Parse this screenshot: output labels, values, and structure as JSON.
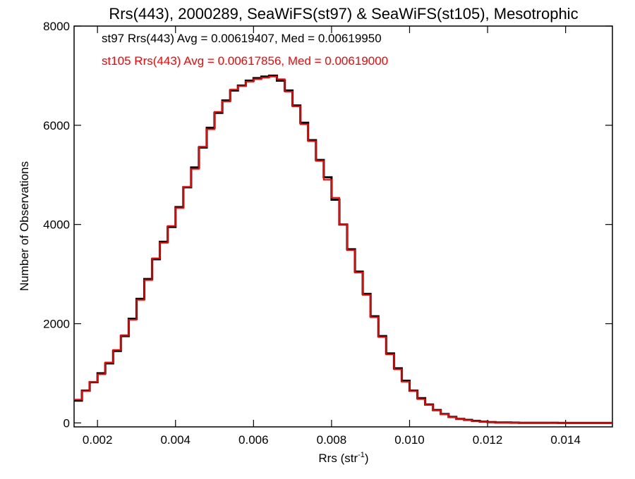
{
  "chart_data": {
    "type": "line",
    "title": "Rrs(443), 2000289, SeaWiFS(st97) & SeaWiFS(st105), Mesotrophic",
    "xlabel_main": "Rrs (str",
    "xlabel_sup": "-1",
    "xlabel_close": ")",
    "ylabel": "Number of Observations",
    "xlim": [
      0.0014,
      0.0152
    ],
    "ylim": [
      -80,
      8000
    ],
    "xticks": [
      "0.002",
      "0.004",
      "0.006",
      "0.008",
      "0.010",
      "0.012",
      "0.014"
    ],
    "xtick_values": [
      0.002,
      0.004,
      0.006,
      0.008,
      0.01,
      0.012,
      0.014
    ],
    "yticks": [
      "0",
      "2000",
      "4000",
      "6000",
      "8000"
    ],
    "ytick_values": [
      0,
      2000,
      4000,
      6000,
      8000
    ],
    "grid": false,
    "legend_placement": "top-left",
    "annotations": [
      {
        "text": "st97 Rrs(443) Avg = 0.00619407, Med = 0.00619950",
        "color": "#000000"
      },
      {
        "text": "st105 Rrs(443) Avg = 0.00617856, Med = 0.00619000",
        "color": "#ff0000"
      }
    ],
    "series": [
      {
        "name": "st97",
        "color": "#000000",
        "x": [
          0.0014,
          0.0016,
          0.0018,
          0.002,
          0.0022,
          0.0024,
          0.0026,
          0.0028,
          0.003,
          0.0032,
          0.0034,
          0.0036,
          0.0038,
          0.004,
          0.0042,
          0.0044,
          0.0046,
          0.0048,
          0.005,
          0.0052,
          0.0054,
          0.0056,
          0.0058,
          0.006,
          0.0062,
          0.0064,
          0.0066,
          0.0068,
          0.007,
          0.0072,
          0.0074,
          0.0076,
          0.0078,
          0.008,
          0.0082,
          0.0084,
          0.0086,
          0.0088,
          0.009,
          0.0092,
          0.0094,
          0.0096,
          0.0098,
          0.01,
          0.0102,
          0.0104,
          0.0106,
          0.0108,
          0.011,
          0.0112,
          0.0114,
          0.0116,
          0.0118,
          0.012,
          0.0122,
          0.0124,
          0.0126,
          0.0128,
          0.013,
          0.0132,
          0.0134,
          0.0136,
          0.0138,
          0.014,
          0.0142,
          0.0144,
          0.0146,
          0.0148,
          0.015,
          0.0152
        ],
        "y": [
          450,
          650,
          820,
          1000,
          1200,
          1450,
          1750,
          2100,
          2500,
          2900,
          3300,
          3650,
          3950,
          4350,
          4750,
          5150,
          5550,
          5950,
          6250,
          6500,
          6700,
          6800,
          6900,
          6950,
          6980,
          7000,
          6900,
          6700,
          6400,
          6050,
          5700,
          5300,
          4950,
          4500,
          4000,
          3500,
          3050,
          2600,
          2150,
          1750,
          1400,
          1100,
          850,
          650,
          500,
          370,
          260,
          180,
          120,
          80,
          60,
          40,
          25,
          15,
          10,
          8,
          5,
          3,
          2,
          2,
          1,
          1,
          0,
          0,
          0,
          0,
          0,
          0,
          0,
          0
        ]
      },
      {
        "name": "st105",
        "color": "#ff0000",
        "x": [
          0.0014,
          0.0016,
          0.0018,
          0.002,
          0.0022,
          0.0024,
          0.0026,
          0.0028,
          0.003,
          0.0032,
          0.0034,
          0.0036,
          0.0038,
          0.004,
          0.0042,
          0.0044,
          0.0046,
          0.0048,
          0.005,
          0.0052,
          0.0054,
          0.0056,
          0.0058,
          0.006,
          0.0062,
          0.0064,
          0.0066,
          0.0068,
          0.007,
          0.0072,
          0.0074,
          0.0076,
          0.0078,
          0.008,
          0.0082,
          0.0084,
          0.0086,
          0.0088,
          0.009,
          0.0092,
          0.0094,
          0.0096,
          0.0098,
          0.01,
          0.0102,
          0.0104,
          0.0106,
          0.0108,
          0.011,
          0.0112,
          0.0114,
          0.0116,
          0.0118,
          0.012,
          0.0122,
          0.0124,
          0.0126,
          0.0128,
          0.013,
          0.0132,
          0.0134,
          0.0136,
          0.0138,
          0.014,
          0.0142,
          0.0144,
          0.0146,
          0.0148,
          0.015,
          0.0152
        ],
        "y": [
          470,
          640,
          830,
          980,
          1220,
          1470,
          1770,
          2080,
          2480,
          2880,
          3320,
          3630,
          3970,
          4330,
          4760,
          5120,
          5570,
          5920,
          6270,
          6480,
          6720,
          6790,
          6880,
          6930,
          6960,
          6980,
          6930,
          6680,
          6380,
          6020,
          5680,
          5280,
          4900,
          4540,
          4000,
          3480,
          3030,
          2580,
          2130,
          1730,
          1380,
          1080,
          830,
          640,
          480,
          360,
          250,
          175,
          115,
          78,
          55,
          38,
          22,
          14,
          9,
          7,
          4,
          3,
          2,
          1,
          1,
          0,
          0,
          0,
          0,
          0,
          0,
          0,
          0,
          0
        ]
      }
    ]
  }
}
